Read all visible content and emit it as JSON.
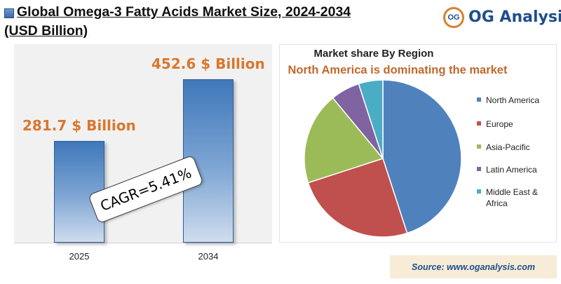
{
  "header": {
    "title_line1": "Global Omega-3 Fatty Acids Market Size, 2024-2034",
    "title_line2": "(USD Billion)"
  },
  "logo": {
    "badge": "OG",
    "name": "OG Analysis",
    "colors": {
      "ring": "#d9822b",
      "text": "#1f4e8c"
    }
  },
  "chart_data": [
    {
      "type": "bar",
      "categories": [
        "2025",
        "2034"
      ],
      "values": [
        281.7,
        452.6
      ],
      "data_labels": [
        "281.7 $ Billion",
        "452.6 $ Billion"
      ],
      "ylim": [
        0,
        550
      ],
      "annotation": "CAGR=5.41%",
      "bar_color": "#4a7fbf",
      "label_color": "#d9772f",
      "grid": false
    },
    {
      "type": "pie",
      "title": "Market share By Region",
      "subtitle": "North America is dominating the market",
      "categories": [
        "North America",
        "Europe",
        "Asia-Pacific",
        "Latin America",
        "Middle East & Africa"
      ],
      "values": [
        45,
        25,
        19,
        6,
        5
      ],
      "colors": [
        "#4f81bd",
        "#c0504d",
        "#9bbb59",
        "#8064a2",
        "#4bacc6"
      ],
      "legend": "right"
    }
  ],
  "footer": {
    "source": "Source: www.oganalysis.com"
  }
}
